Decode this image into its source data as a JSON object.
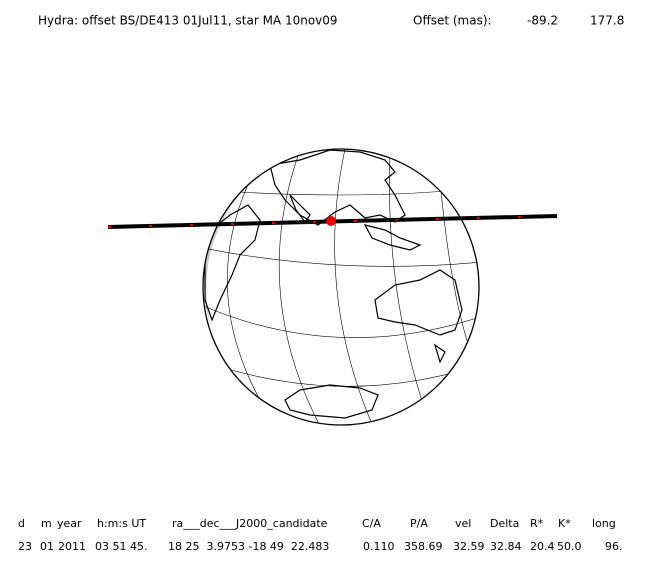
{
  "header": {
    "title": "Hydra: offset BS/DE413 01Jul11, star MA 10nov09",
    "offset_label": "Offset (mas):",
    "offset_values": [
      "-89.2",
      "177.8"
    ]
  },
  "table": {
    "columns": [
      "d",
      "m",
      "year",
      "h:m:s UT",
      "ra___dec___J2000_candidate",
      "C/A",
      "P/A",
      "vel",
      "Delta",
      "R*",
      "K*",
      "long"
    ],
    "rows": [
      [
        "23",
        "01",
        "2011",
        "03 51 45.",
        "18 25  3.9753 -18 49  22.483",
        "0.110",
        "358.69",
        "32.59",
        "32.84",
        "20.4",
        "50.0",
        "96."
      ]
    ]
  }
}
